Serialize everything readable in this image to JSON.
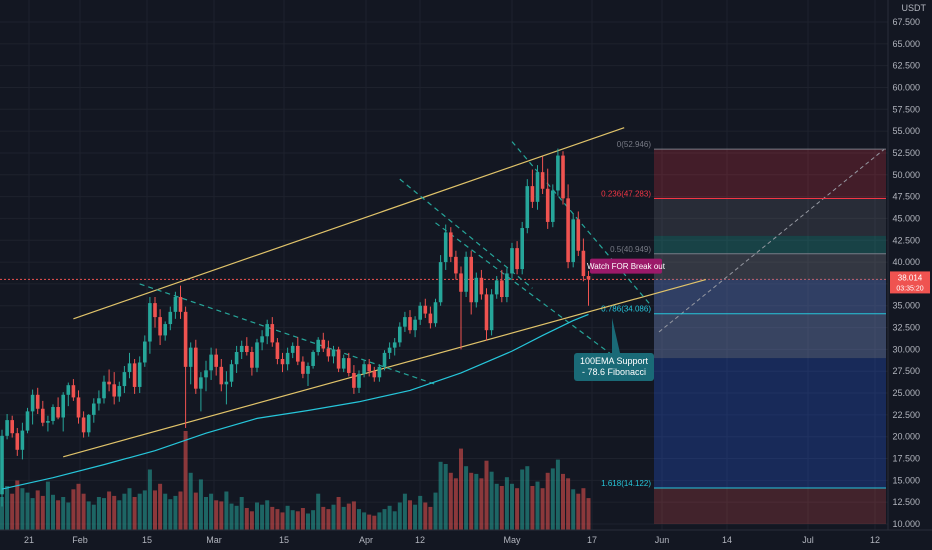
{
  "chart_data": {
    "type": "candlestick",
    "quote_currency": "USDT",
    "price_axis": {
      "min": 10,
      "max": 68.5,
      "ticks": [
        "67.500",
        "65.000",
        "62.500",
        "60.000",
        "57.500",
        "55.000",
        "52.500",
        "50.000",
        "47.500",
        "45.000",
        "42.500",
        "40.000",
        "37.500",
        "35.000",
        "32.500",
        "30.000",
        "27.500",
        "25.000",
        "22.500",
        "20.000",
        "17.500",
        "15.000",
        "12.500",
        "10.000"
      ]
    },
    "time_axis": {
      "labels": [
        "21",
        "Feb",
        "15",
        "Mar",
        "15",
        "Apr",
        "12",
        "May",
        "17",
        "Jun",
        "14",
        "Jul",
        "12"
      ]
    },
    "last_price": {
      "value": "38.014",
      "countdown": "03:35:20"
    },
    "candles": [
      [
        13.4,
        20.8,
        12.0,
        20.1
      ],
      [
        20.1,
        22.6,
        19.7,
        21.9
      ],
      [
        21.9,
        22.4,
        19.9,
        20.4
      ],
      [
        20.4,
        21.0,
        17.8,
        18.5
      ],
      [
        18.5,
        21.6,
        17.4,
        20.7
      ],
      [
        20.7,
        23.3,
        20.4,
        22.9
      ],
      [
        22.9,
        25.4,
        21.4,
        24.8
      ],
      [
        24.8,
        25.6,
        22.6,
        23.2
      ],
      [
        23.2,
        24.1,
        21.2,
        21.6
      ],
      [
        21.6,
        22.4,
        20.6,
        21.8
      ],
      [
        21.8,
        23.7,
        21.4,
        23.4
      ],
      [
        23.4,
        24.5,
        22.0,
        22.2
      ],
      [
        22.2,
        25.1,
        20.6,
        24.8
      ],
      [
        24.8,
        26.2,
        23.5,
        25.9
      ],
      [
        25.9,
        26.6,
        24.1,
        24.5
      ],
      [
        24.5,
        25.3,
        21.5,
        22.2
      ],
      [
        22.2,
        22.9,
        19.9,
        20.5
      ],
      [
        20.5,
        22.6,
        20.0,
        22.5
      ],
      [
        22.5,
        24.4,
        21.6,
        23.8
      ],
      [
        23.8,
        25.3,
        23.0,
        24.4
      ],
      [
        24.4,
        27.0,
        23.8,
        26.3
      ],
      [
        26.3,
        27.7,
        25.2,
        26.0
      ],
      [
        26.0,
        27.4,
        23.7,
        24.6
      ],
      [
        24.6,
        26.3,
        24.0,
        25.8
      ],
      [
        25.8,
        28.1,
        25.0,
        27.4
      ],
      [
        27.4,
        29.6,
        26.7,
        28.4
      ],
      [
        28.4,
        28.9,
        24.9,
        25.7
      ],
      [
        25.7,
        29.2,
        25.0,
        28.5
      ],
      [
        28.5,
        31.6,
        28.0,
        30.9
      ],
      [
        30.9,
        36.0,
        29.5,
        35.3
      ],
      [
        35.3,
        36.0,
        32.5,
        33.7
      ],
      [
        33.7,
        34.6,
        30.5,
        31.6
      ],
      [
        31.6,
        33.2,
        31.0,
        32.9
      ],
      [
        32.9,
        34.9,
        32.2,
        34.3
      ],
      [
        34.3,
        36.6,
        33.5,
        36.0
      ],
      [
        36.0,
        37.3,
        33.5,
        34.3
      ],
      [
        34.3,
        34.9,
        21.0,
        28.0
      ],
      [
        28.0,
        30.8,
        26.0,
        30.2
      ],
      [
        30.2,
        31.1,
        24.9,
        25.5
      ],
      [
        25.5,
        27.4,
        22.9,
        26.8
      ],
      [
        26.8,
        28.7,
        25.2,
        27.6
      ],
      [
        27.6,
        30.2,
        26.5,
        29.4
      ],
      [
        29.4,
        30.1,
        27.0,
        28.0
      ],
      [
        28.0,
        28.9,
        25.2,
        26.0
      ],
      [
        26.0,
        27.5,
        23.7,
        26.3
      ],
      [
        26.3,
        28.8,
        25.7,
        28.3
      ],
      [
        28.3,
        30.4,
        27.3,
        29.7
      ],
      [
        29.7,
        31.0,
        28.9,
        30.4
      ],
      [
        30.4,
        31.4,
        29.3,
        29.7
      ],
      [
        29.7,
        30.3,
        27.0,
        27.9
      ],
      [
        27.9,
        31.2,
        27.4,
        30.8
      ],
      [
        30.8,
        32.2,
        29.9,
        31.5
      ],
      [
        31.5,
        33.4,
        30.6,
        32.9
      ],
      [
        32.9,
        33.7,
        30.3,
        30.8
      ],
      [
        30.8,
        31.3,
        28.3,
        28.9
      ],
      [
        28.9,
        29.6,
        27.4,
        28.3
      ],
      [
        28.3,
        30.2,
        27.6,
        29.6
      ],
      [
        29.6,
        30.8,
        29.0,
        30.4
      ],
      [
        30.4,
        31.4,
        28.2,
        28.6
      ],
      [
        28.6,
        29.2,
        26.7,
        27.2
      ],
      [
        27.2,
        28.5,
        25.8,
        28.1
      ],
      [
        28.1,
        29.9,
        27.8,
        29.7
      ],
      [
        29.7,
        31.4,
        29.3,
        31.1
      ],
      [
        31.1,
        31.9,
        29.7,
        30.1
      ],
      [
        30.1,
        31.0,
        28.6,
        29.2
      ],
      [
        29.2,
        30.4,
        28.4,
        30.0
      ],
      [
        30.0,
        30.3,
        27.4,
        27.8
      ],
      [
        27.8,
        29.4,
        27.4,
        29.0
      ],
      [
        29.0,
        29.6,
        26.9,
        27.3
      ],
      [
        27.3,
        28.2,
        24.9,
        25.6
      ],
      [
        25.6,
        27.6,
        25.0,
        27.2
      ],
      [
        27.2,
        28.7,
        26.8,
        28.3
      ],
      [
        28.3,
        28.9,
        26.9,
        27.5
      ],
      [
        27.5,
        28.0,
        26.3,
        26.8
      ],
      [
        26.8,
        28.3,
        26.3,
        28.0
      ],
      [
        28.0,
        29.9,
        27.6,
        29.6
      ],
      [
        29.6,
        30.8,
        28.9,
        30.2
      ],
      [
        30.2,
        31.3,
        29.3,
        30.8
      ],
      [
        30.8,
        33.1,
        30.3,
        32.6
      ],
      [
        32.6,
        34.3,
        32.0,
        33.7
      ],
      [
        33.7,
        34.5,
        31.8,
        32.2
      ],
      [
        32.2,
        33.8,
        31.4,
        33.4
      ],
      [
        33.4,
        35.4,
        32.8,
        35.0
      ],
      [
        35.0,
        35.8,
        33.6,
        34.1
      ],
      [
        34.1,
        34.9,
        32.4,
        33.0
      ],
      [
        33.0,
        35.8,
        32.6,
        35.4
      ],
      [
        35.4,
        40.8,
        35.0,
        40.0
      ],
      [
        40.0,
        44.3,
        39.1,
        43.4
      ],
      [
        43.4,
        44.0,
        40.0,
        40.6
      ],
      [
        40.6,
        41.3,
        38.0,
        38.7
      ],
      [
        38.7,
        39.5,
        30.0,
        36.6
      ],
      [
        36.6,
        41.2,
        36.0,
        40.6
      ],
      [
        40.6,
        41.3,
        34.0,
        35.4
      ],
      [
        35.4,
        38.8,
        34.8,
        38.2
      ],
      [
        38.2,
        39.1,
        35.7,
        36.3
      ],
      [
        36.3,
        37.0,
        31.0,
        32.2
      ],
      [
        32.2,
        36.9,
        31.6,
        36.3
      ],
      [
        36.3,
        38.4,
        35.8,
        37.9
      ],
      [
        37.9,
        39.1,
        35.4,
        36.0
      ],
      [
        36.0,
        39.3,
        35.4,
        38.7
      ],
      [
        38.7,
        42.2,
        38.1,
        41.6
      ],
      [
        41.6,
        42.4,
        38.6,
        39.2
      ],
      [
        39.2,
        44.6,
        38.6,
        43.9
      ],
      [
        43.9,
        49.5,
        43.3,
        48.7
      ],
      [
        48.7,
        50.6,
        46.2,
        46.9
      ],
      [
        46.9,
        51.1,
        46.0,
        50.3
      ],
      [
        50.3,
        52.1,
        47.8,
        48.4
      ],
      [
        48.4,
        50.7,
        43.8,
        44.6
      ],
      [
        44.6,
        48.9,
        44.0,
        48.2
      ],
      [
        48.2,
        53.0,
        47.6,
        52.2
      ],
      [
        52.2,
        52.7,
        46.6,
        47.3
      ],
      [
        47.3,
        48.9,
        39.3,
        40.0
      ],
      [
        40.0,
        45.6,
        39.4,
        44.9
      ],
      [
        44.9,
        45.8,
        40.7,
        41.3
      ],
      [
        41.3,
        42.7,
        37.8,
        38.4
      ],
      [
        38.4,
        39.0,
        35.0,
        38.0
      ]
    ],
    "volume": [
      0.3,
      0.4,
      0.33,
      0.45,
      0.38,
      0.34,
      0.29,
      0.36,
      0.31,
      0.44,
      0.32,
      0.27,
      0.3,
      0.25,
      0.37,
      0.42,
      0.33,
      0.26,
      0.23,
      0.3,
      0.29,
      0.35,
      0.31,
      0.27,
      0.33,
      0.38,
      0.3,
      0.33,
      0.36,
      0.55,
      0.36,
      0.42,
      0.33,
      0.28,
      0.31,
      0.35,
      0.9,
      0.52,
      0.34,
      0.46,
      0.3,
      0.33,
      0.27,
      0.26,
      0.35,
      0.24,
      0.22,
      0.3,
      0.2,
      0.17,
      0.25,
      0.23,
      0.27,
      0.21,
      0.19,
      0.16,
      0.22,
      0.18,
      0.17,
      0.2,
      0.15,
      0.18,
      0.33,
      0.21,
      0.19,
      0.23,
      0.3,
      0.21,
      0.24,
      0.26,
      0.19,
      0.16,
      0.14,
      0.13,
      0.16,
      0.19,
      0.22,
      0.17,
      0.25,
      0.33,
      0.27,
      0.23,
      0.31,
      0.25,
      0.21,
      0.34,
      0.62,
      0.6,
      0.52,
      0.47,
      0.74,
      0.58,
      0.52,
      0.51,
      0.47,
      0.63,
      0.53,
      0.42,
      0.4,
      0.48,
      0.42,
      0.38,
      0.55,
      0.58,
      0.4,
      0.44,
      0.38,
      0.52,
      0.56,
      0.64,
      0.51,
      0.47,
      0.37,
      0.33,
      0.38,
      0.29
    ],
    "ema100": [
      [
        0,
        14.0
      ],
      [
        10,
        15.3
      ],
      [
        20,
        16.8
      ],
      [
        30,
        18.4
      ],
      [
        40,
        20.4
      ],
      [
        50,
        22.1
      ],
      [
        60,
        23.0
      ],
      [
        70,
        24.0
      ],
      [
        80,
        25.3
      ],
      [
        90,
        27.3
      ],
      [
        100,
        29.8
      ],
      [
        106,
        31.6
      ],
      [
        112,
        33.3
      ],
      [
        115,
        34.0
      ]
    ],
    "trendlines": [
      {
        "type": "channel-upper",
        "color": "#e0c36a",
        "p1": [
          14,
          33.5
        ],
        "p2": [
          122,
          55.4
        ]
      },
      {
        "type": "channel-lower",
        "color": "#e0c36a",
        "p1": [
          12,
          17.7
        ],
        "p2": [
          138,
          38.0
        ]
      }
    ],
    "dashed_lines": [
      {
        "color": "#26a69a",
        "p1": [
          27,
          37.5
        ],
        "p2": [
          85,
          26.0
        ]
      },
      {
        "color": "#26a69a",
        "p1": [
          78,
          49.5
        ],
        "p2": [
          104,
          37.0
        ]
      },
      {
        "color": "#26a69a",
        "p1": [
          85,
          44.5
        ],
        "p2": [
          120,
          29.2
        ]
      },
      {
        "color": "#26a69a",
        "p1": [
          100,
          53.8
        ],
        "p2": [
          127,
          35.2
        ]
      }
    ],
    "fibonacci": [
      {
        "level": "0",
        "price": 52.946,
        "label": "0(52.946)",
        "color": "#787b86"
      },
      {
        "level": "0.236",
        "price": 47.283,
        "label": "0.236(47.283)",
        "color": "#f23645"
      },
      {
        "level": "0.5",
        "price": 40.949,
        "label": "0.5(40.949)",
        "color": "#787b86"
      },
      {
        "level": "0.786",
        "price": 34.086,
        "label": "0.786(34.086)",
        "color": "#26c6da"
      },
      {
        "level": "1.618",
        "price": 14.122,
        "label": "1.618(14.122)",
        "color": "#26c6da"
      }
    ],
    "annotations": [
      {
        "text": "Watch FOR Break out",
        "bg": "#9c1a6a"
      },
      {
        "text": "100EMA Support - 78.6 Fibonacci",
        "bg": "#1a6a77"
      }
    ],
    "colors": {
      "background": "#131722",
      "up": "#26a69a",
      "down": "#ef5350",
      "grid": "#1e222d",
      "axis_text": "#b2b5be",
      "price_label_bg": "#ef5350"
    }
  }
}
